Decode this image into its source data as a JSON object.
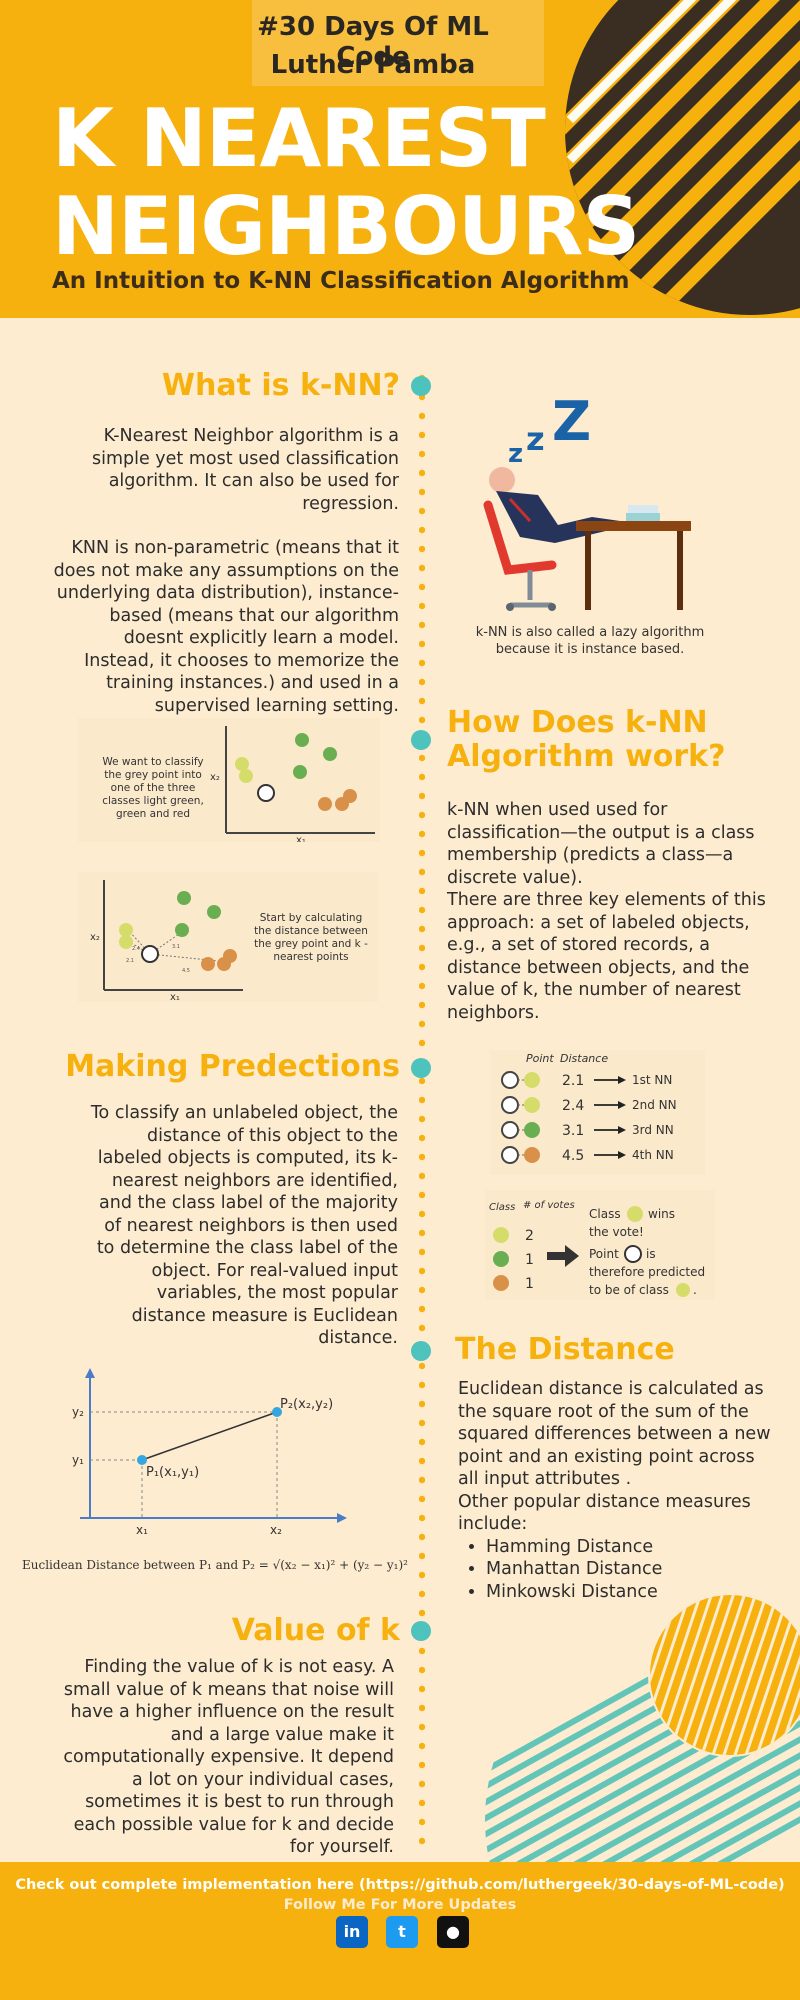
{
  "header": {
    "hashtag": "#30 Days Of ML Code",
    "author": "Luther Pamba",
    "title_line1": "K NEAREST",
    "title_line2": "NEIGHBOURS",
    "subtitle": "An Intuition to K-NN Classification Algorithm"
  },
  "what_is": {
    "heading": "What is k-NN?",
    "para1": "K-Nearest Neighbor algorithm is a simple yet most used classification algorithm. It can also be used for regression.",
    "para2": "KNN is non-parametric (means that it does not make any assumptions on the underlying data distribution), instance-based (means that our algorithm doesnt explicitly learn a model. Instead, it chooses to memorize the training instances.) and used in a supervised learning setting.",
    "image_caption": "k-NN is also called a lazy algorithm because it is instance based.",
    "zzz": "zzZ"
  },
  "how_work": {
    "heading": "How Does k-NN Algorithm work?",
    "diagram1_caption": "We want to classify the grey point into one of the three classes light green, green and red",
    "diagram2_caption": "Start by calculating the distance between the grey point and k -nearest points",
    "axis_x": "x₁",
    "axis_y": "x₂",
    "dist_labels": [
      "2.4",
      "2.1",
      "3.1",
      "4.5"
    ],
    "para1": "k-NN when used used for classification—the output is a class membership (predicts a class—a discrete value).",
    "para2": "There are three key elements of this approach: a set of labeled objects, e.g., a set of stored records, a distance between objects, and the value of k, the number of nearest neighbors."
  },
  "predictions": {
    "heading": "Making Predections",
    "para": "To classify an unlabeled object, the distance of this object to the labeled objects is computed, its k-nearest neighbors are identified, and the class label of the majority of nearest neighbors is then used to determine the class label of the object. For real-valued input variables, the most popular distance measure is Euclidean distance.",
    "table_header_point": "Point",
    "table_header_distance": "Distance",
    "rows": [
      {
        "distance": "2.1",
        "rank": "1st NN",
        "color": "#d6dc6a"
      },
      {
        "distance": "2.4",
        "rank": "2nd NN",
        "color": "#d6dc6a"
      },
      {
        "distance": "3.1",
        "rank": "3rd NN",
        "color": "#6aae52"
      },
      {
        "distance": "4.5",
        "rank": "4th NN",
        "color": "#d9914a"
      }
    ],
    "votes_header_class": "Class",
    "votes_header_votes": "# of votes",
    "votes": [
      {
        "count": "2",
        "color": "#d6dc6a"
      },
      {
        "count": "1",
        "color": "#6aae52"
      },
      {
        "count": "1",
        "color": "#d9914a"
      }
    ],
    "result_class": "Class",
    "result_wins": "wins",
    "result_vote": "the vote!",
    "result_point": "Point",
    "result_is": "is",
    "result_therefore": "therefore predicted",
    "result_tobe": "to be of class",
    "result_period": "."
  },
  "distance": {
    "heading": "The Distance",
    "para1": "Euclidean distance is calculated as the square root of the sum of the squared differences between a new point and an existing point across all input attributes .",
    "para2": "Other popular distance measures include:",
    "items": [
      "Hamming Distance",
      "Manhattan Distance",
      "Minkowski Distance"
    ],
    "graph_p2": "P₂(x₂,y₂)",
    "graph_p1": "P₁(x₁,y₁)",
    "graph_y2": "y₂",
    "graph_y1": "y₁",
    "graph_x1": "x₁",
    "graph_x2": "x₂",
    "formula_text": "Euclidean Distance between P₁ and P₂ = ",
    "formula_math": "√(x₂ − x₁)² + (y₂ − y₁)²"
  },
  "value_k": {
    "heading": "Value of k",
    "para": "Finding the value of k is not easy. A small value of k means that noise will have a higher influence on the result and a large value make it computationally expensive. It depend a lot on your individual cases, sometimes it is best to run through each possible value for k and decide for yourself."
  },
  "footer": {
    "cta": "Check out complete implementation here (https://github.com/luthergeek/30-days-of-ML-code)",
    "follow": "Follow Me For More Updates",
    "linkedin": "in",
    "twitter": "t",
    "github": "●"
  },
  "colors": {
    "accent": "#f6b10f",
    "teal": "#4ec3bd",
    "background": "#fdeccf",
    "light_green": "#d6dc6a",
    "green": "#6aae52",
    "orange": "#d9914a"
  }
}
